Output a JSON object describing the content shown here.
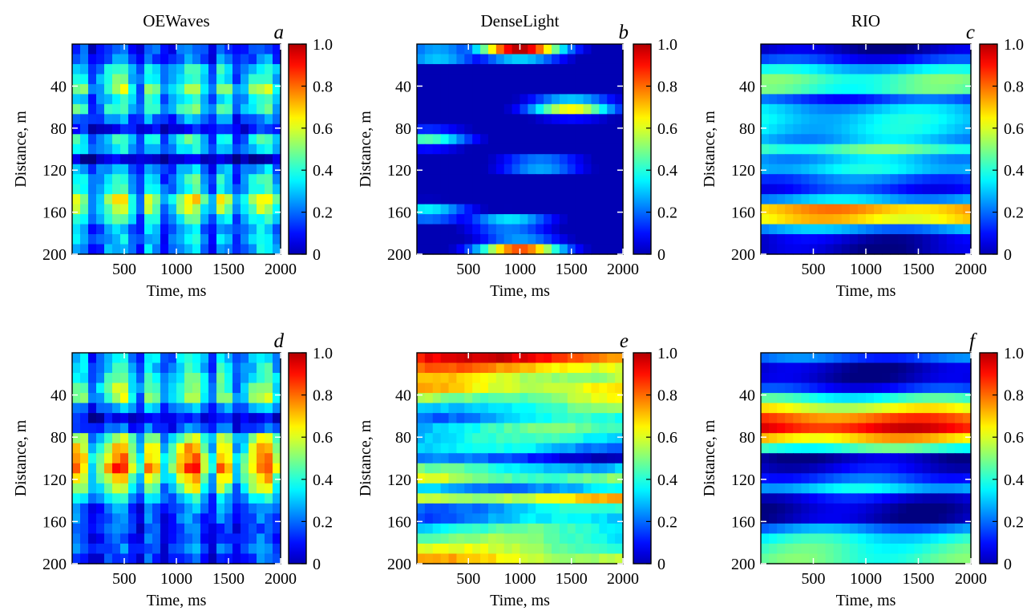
{
  "chart_data": [
    {
      "id": "a",
      "type": "heatmap",
      "panel_letter": "a",
      "title": "OEWaves",
      "xlabel": "Time, ms",
      "ylabel": "Distance, m",
      "xlim": [
        0,
        2000
      ],
      "ylim": [
        200,
        0
      ],
      "xticks": [
        "500",
        "1000",
        "1500",
        "2000"
      ],
      "yticks": [
        "40",
        "80",
        "120",
        "160",
        "200"
      ],
      "colorbar": {
        "ticks": [
          "1.0",
          "0.8",
          "0.6",
          "0.4",
          "0.2",
          "0"
        ],
        "range": [
          0,
          1
        ],
        "colormap": "jet"
      },
      "rows": [
        {
          "distance": 0,
          "value": 0.25
        },
        {
          "distance": 10,
          "value": 0.1
        },
        {
          "distance": 20,
          "value": 0.35
        },
        {
          "distance": 30,
          "value": 0.3
        },
        {
          "distance": 40,
          "value": 0.5
        },
        {
          "distance": 50,
          "value": 0.3
        },
        {
          "distance": 60,
          "value": 0.4
        },
        {
          "distance": 70,
          "value": 0.25
        },
        {
          "distance": 80,
          "value": 0.1
        },
        {
          "distance": 90,
          "value": 0.35
        },
        {
          "distance": 100,
          "value": 0.3
        },
        {
          "distance": 110,
          "value": 0.05
        },
        {
          "distance": 120,
          "value": 0.3
        },
        {
          "distance": 130,
          "value": 0.35
        },
        {
          "distance": 140,
          "value": 0.35
        },
        {
          "distance": 150,
          "value": 0.55
        },
        {
          "distance": 160,
          "value": 0.4
        },
        {
          "distance": 170,
          "value": 0.3
        },
        {
          "distance": 180,
          "value": 0.25
        },
        {
          "distance": 190,
          "value": 0.3
        },
        {
          "distance": 200,
          "value": 0.25
        }
      ],
      "column_modulation": "vertical-stripes"
    },
    {
      "id": "b",
      "type": "heatmap",
      "panel_letter": "b",
      "title": "DenseLight",
      "xlabel": "Time, ms",
      "ylabel": "Distance, m",
      "xlim": [
        0,
        2000
      ],
      "ylim": [
        200,
        0
      ],
      "xticks": [
        "500",
        "1000",
        "1500",
        "2000"
      ],
      "yticks": [
        "40",
        "80",
        "120",
        "160",
        "200"
      ],
      "colorbar": {
        "ticks": [
          "1.0",
          "0.8",
          "0.6",
          "0.4",
          "0.2",
          "0"
        ],
        "range": [
          0,
          1
        ],
        "colormap": "jet"
      },
      "features": [
        {
          "distance": 5,
          "time": 1000,
          "value": 0.95
        },
        {
          "distance": 10,
          "time": 200,
          "value": 0.4
        },
        {
          "distance": 60,
          "time": 1500,
          "value": 0.65
        },
        {
          "distance": 90,
          "time": 100,
          "value": 0.45
        },
        {
          "distance": 115,
          "time": 1200,
          "value": 0.35
        },
        {
          "distance": 160,
          "time": 100,
          "value": 0.4
        },
        {
          "distance": 170,
          "time": 900,
          "value": 0.4
        },
        {
          "distance": 195,
          "time": 1000,
          "value": 0.8
        }
      ],
      "background_value": 0.05
    },
    {
      "id": "c",
      "type": "heatmap",
      "panel_letter": "c",
      "title": "RIO",
      "xlabel": "Time, ms",
      "ylabel": "Distance, m",
      "xlim": [
        0,
        2000
      ],
      "ylim": [
        200,
        0
      ],
      "xticks": [
        "500",
        "1000",
        "1500",
        "2000"
      ],
      "yticks": [
        "40",
        "80",
        "120",
        "160",
        "200"
      ],
      "colorbar": {
        "ticks": [
          "1.0",
          "0.8",
          "0.6",
          "0.4",
          "0.2",
          "0"
        ],
        "range": [
          0,
          1
        ],
        "colormap": "jet"
      },
      "rows": [
        {
          "distance": 0,
          "value": 0.05
        },
        {
          "distance": 10,
          "value": 0.05
        },
        {
          "distance": 20,
          "value": 0.3
        },
        {
          "distance": 30,
          "value": 0.4
        },
        {
          "distance": 40,
          "value": 0.55
        },
        {
          "distance": 50,
          "value": 0.15
        },
        {
          "distance": 60,
          "value": 0.3
        },
        {
          "distance": 70,
          "value": 0.35
        },
        {
          "distance": 80,
          "value": 0.35
        },
        {
          "distance": 90,
          "value": 0.3
        },
        {
          "distance": 100,
          "value": 0.45
        },
        {
          "distance": 110,
          "value": 0.3
        },
        {
          "distance": 120,
          "value": 0.35
        },
        {
          "distance": 130,
          "value": 0.2
        },
        {
          "distance": 140,
          "value": 0.15
        },
        {
          "distance": 150,
          "value": 0.35
        },
        {
          "distance": 160,
          "value": 0.85
        },
        {
          "distance": 170,
          "value": 0.55
        },
        {
          "distance": 180,
          "value": 0.1
        },
        {
          "distance": 190,
          "value": 0.05
        },
        {
          "distance": 200,
          "value": 0.05
        }
      ],
      "column_modulation": "smooth"
    },
    {
      "id": "d",
      "type": "heatmap",
      "panel_letter": "d",
      "title": "",
      "xlabel": "Time, ms",
      "ylabel": "Distance, m",
      "xlim": [
        0,
        2000
      ],
      "ylim": [
        200,
        0
      ],
      "xticks": [
        "500",
        "1000",
        "1500",
        "2000"
      ],
      "yticks": [
        "40",
        "80",
        "120",
        "160",
        "200"
      ],
      "colorbar": {
        "ticks": [
          "1.0",
          "0.8",
          "0.6",
          "0.4",
          "0.2",
          "0"
        ],
        "range": [
          0,
          1
        ],
        "colormap": "jet"
      },
      "rows": [
        {
          "distance": 0,
          "value": 0.3
        },
        {
          "distance": 10,
          "value": 0.3
        },
        {
          "distance": 20,
          "value": 0.35
        },
        {
          "distance": 30,
          "value": 0.4
        },
        {
          "distance": 40,
          "value": 0.5
        },
        {
          "distance": 50,
          "value": 0.3
        },
        {
          "distance": 60,
          "value": 0.1
        },
        {
          "distance": 70,
          "value": 0.15
        },
        {
          "distance": 80,
          "value": 0.45
        },
        {
          "distance": 90,
          "value": 0.55
        },
        {
          "distance": 100,
          "value": 0.6
        },
        {
          "distance": 110,
          "value": 0.65
        },
        {
          "distance": 120,
          "value": 0.55
        },
        {
          "distance": 130,
          "value": 0.45
        },
        {
          "distance": 140,
          "value": 0.3
        },
        {
          "distance": 150,
          "value": 0.2
        },
        {
          "distance": 160,
          "value": 0.2
        },
        {
          "distance": 170,
          "value": 0.15
        },
        {
          "distance": 180,
          "value": 0.2
        },
        {
          "distance": 190,
          "value": 0.2
        },
        {
          "distance": 200,
          "value": 0.15
        }
      ],
      "column_modulation": "vertical-stripes"
    },
    {
      "id": "e",
      "type": "heatmap",
      "panel_letter": "e",
      "title": "",
      "xlabel": "Time, ms",
      "ylabel": "Distance, m",
      "xlim": [
        0,
        2000
      ],
      "ylim": [
        200,
        0
      ],
      "xticks": [
        "500",
        "1000",
        "1500",
        "2000"
      ],
      "yticks": [
        "40",
        "80",
        "120",
        "160",
        "200"
      ],
      "colorbar": {
        "ticks": [
          "1.0",
          "0.8",
          "0.6",
          "0.4",
          "0.2",
          "0"
        ],
        "range": [
          0,
          1
        ],
        "colormap": "jet"
      },
      "rows": [
        {
          "distance": 0,
          "value": 0.85
        },
        {
          "distance": 10,
          "value": 0.8
        },
        {
          "distance": 20,
          "value": 0.55
        },
        {
          "distance": 30,
          "value": 0.7
        },
        {
          "distance": 40,
          "value": 0.6
        },
        {
          "distance": 50,
          "value": 0.45
        },
        {
          "distance": 60,
          "value": 0.3
        },
        {
          "distance": 70,
          "value": 0.4
        },
        {
          "distance": 80,
          "value": 0.35
        },
        {
          "distance": 90,
          "value": 0.3
        },
        {
          "distance": 100,
          "value": 0.15
        },
        {
          "distance": 110,
          "value": 0.4
        },
        {
          "distance": 120,
          "value": 0.55
        },
        {
          "distance": 130,
          "value": 0.3
        },
        {
          "distance": 140,
          "value": 0.7
        },
        {
          "distance": 150,
          "value": 0.2
        },
        {
          "distance": 160,
          "value": 0.3
        },
        {
          "distance": 170,
          "value": 0.4
        },
        {
          "distance": 180,
          "value": 0.45
        },
        {
          "distance": 190,
          "value": 0.55
        },
        {
          "distance": 200,
          "value": 0.7
        }
      ],
      "column_modulation": "diagonal"
    },
    {
      "id": "f",
      "type": "heatmap",
      "panel_letter": "f",
      "title": "",
      "xlabel": "Time, ms",
      "ylabel": "Distance, m",
      "xlim": [
        0,
        2000
      ],
      "ylim": [
        200,
        0
      ],
      "xticks": [
        "500",
        "1000",
        "1500",
        "2000"
      ],
      "yticks": [
        "40",
        "80",
        "120",
        "160",
        "200"
      ],
      "colorbar": {
        "ticks": [
          "1.0",
          "0.8",
          "0.6",
          "0.4",
          "0.2",
          "0"
        ],
        "range": [
          0,
          1
        ],
        "colormap": "jet"
      },
      "rows": [
        {
          "distance": 0,
          "value": 0.35
        },
        {
          "distance": 10,
          "value": 0.05
        },
        {
          "distance": 20,
          "value": 0.05
        },
        {
          "distance": 30,
          "value": 0.05
        },
        {
          "distance": 40,
          "value": 0.35
        },
        {
          "distance": 50,
          "value": 0.55
        },
        {
          "distance": 60,
          "value": 0.75
        },
        {
          "distance": 70,
          "value": 0.9
        },
        {
          "distance": 80,
          "value": 0.7
        },
        {
          "distance": 90,
          "value": 0.45
        },
        {
          "distance": 100,
          "value": 0.05
        },
        {
          "distance": 110,
          "value": 0.1
        },
        {
          "distance": 120,
          "value": 0.2
        },
        {
          "distance": 130,
          "value": 0.35
        },
        {
          "distance": 140,
          "value": 0.05
        },
        {
          "distance": 150,
          "value": 0.05
        },
        {
          "distance": 160,
          "value": 0.05
        },
        {
          "distance": 170,
          "value": 0.35
        },
        {
          "distance": 180,
          "value": 0.4
        },
        {
          "distance": 190,
          "value": 0.45
        },
        {
          "distance": 200,
          "value": 0.45
        }
      ],
      "column_modulation": "smooth"
    }
  ]
}
